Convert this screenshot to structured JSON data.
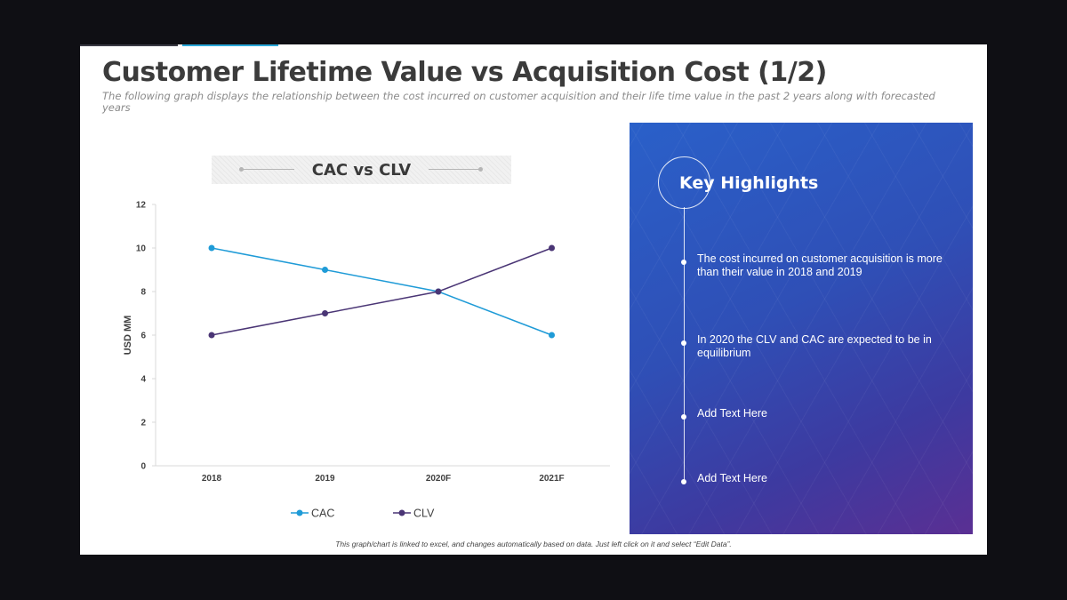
{
  "slide": {
    "title": "Customer Lifetime Value vs Acquisition Cost (1/2)",
    "subtitle": "The following graph displays the relationship between the cost incurred on customer acquisition and their life time value in the past 2 years along with forecasted years",
    "footer_note": "This graph/chart is linked to excel, and changes automatically based on data. Just left click on it and select “Edit Data”."
  },
  "chart_data": {
    "type": "line",
    "title": "CAC vs CLV",
    "xlabel": "",
    "ylabel": "USD MM",
    "categories": [
      "2018",
      "2019",
      "2020F",
      "2021F"
    ],
    "series": [
      {
        "name": "CAC",
        "values": [
          10,
          9,
          8,
          6
        ],
        "color": "#1f9bd7"
      },
      {
        "name": "CLV",
        "values": [
          6,
          7,
          8,
          10
        ],
        "color": "#4a3575"
      }
    ],
    "ylim": [
      0,
      12
    ],
    "yticks": [
      0,
      2,
      4,
      6,
      8,
      10,
      12
    ],
    "grid": false,
    "legend": "bottom"
  },
  "highlights": {
    "title": "Key Highlights",
    "items": [
      "The cost incurred on customer acquisition is more than their value in 2018 and 2019",
      "In 2020 the CLV and CAC are expected to be in equilibrium",
      "Add Text Here",
      "Add Text Here"
    ]
  }
}
